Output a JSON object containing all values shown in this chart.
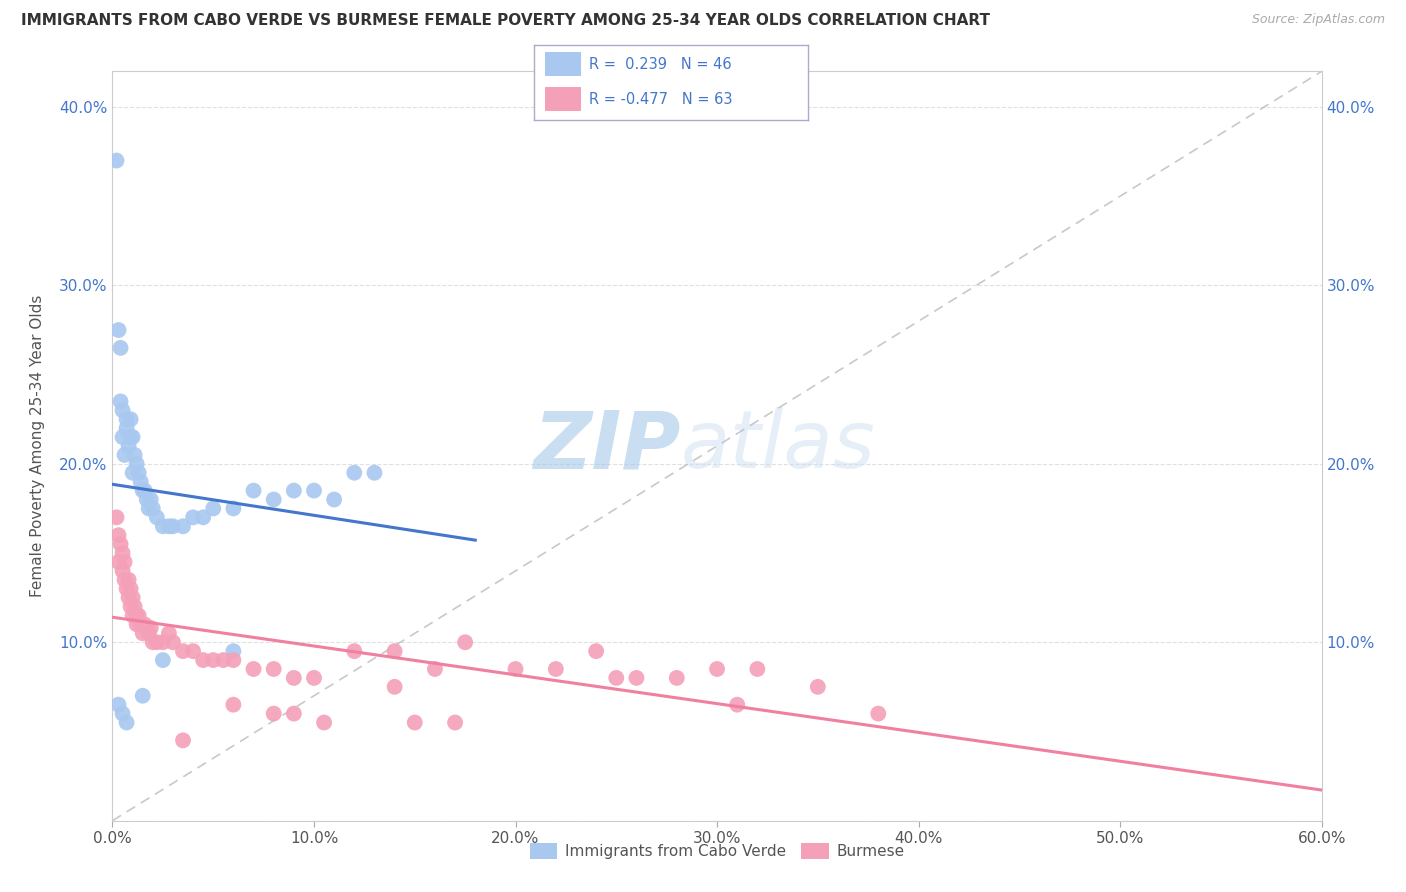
{
  "title": "IMMIGRANTS FROM CABO VERDE VS BURMESE FEMALE POVERTY AMONG 25-34 YEAR OLDS CORRELATION CHART",
  "source": "Source: ZipAtlas.com",
  "ylabel": "Female Poverty Among 25-34 Year Olds",
  "background_color": "#ffffff",
  "watermark_zip": "ZIP",
  "watermark_atlas": "atlas",
  "cabo_verde_color": "#a8c8f0",
  "burmese_color": "#f4a0b8",
  "cabo_verde_line_color": "#4477cc",
  "burmese_line_color": "#f080a0",
  "trendline_dashed_color": "#bbbbbb",
  "xlim": [
    0.0,
    0.6
  ],
  "ylim": [
    0.0,
    0.42
  ],
  "xtick_vals": [
    0.0,
    0.1,
    0.2,
    0.3,
    0.4,
    0.5,
    0.6
  ],
  "ytick_vals": [
    0.0,
    0.1,
    0.2,
    0.3,
    0.4
  ],
  "xtick_labels": [
    "0.0%",
    "10.0%",
    "20.0%",
    "30.0%",
    "40.0%",
    "50.0%",
    "60.0%"
  ],
  "ytick_left_labels": [
    "",
    "10.0%",
    "20.0%",
    "30.0%",
    "40.0%"
  ],
  "ytick_right_labels": [
    "10.0%",
    "20.0%",
    "30.0%",
    "40.0%"
  ],
  "cabo_verde_x": [
    0.002,
    0.003,
    0.004,
    0.004,
    0.005,
    0.005,
    0.006,
    0.007,
    0.007,
    0.008,
    0.009,
    0.009,
    0.01,
    0.01,
    0.011,
    0.012,
    0.013,
    0.014,
    0.015,
    0.016,
    0.017,
    0.018,
    0.019,
    0.02,
    0.022,
    0.025,
    0.028,
    0.03,
    0.035,
    0.04,
    0.045,
    0.05,
    0.06,
    0.07,
    0.08,
    0.09,
    0.1,
    0.11,
    0.12,
    0.13,
    0.003,
    0.005,
    0.007,
    0.015,
    0.025,
    0.06
  ],
  "cabo_verde_y": [
    0.37,
    0.275,
    0.265,
    0.235,
    0.215,
    0.23,
    0.205,
    0.225,
    0.22,
    0.21,
    0.215,
    0.225,
    0.195,
    0.215,
    0.205,
    0.2,
    0.195,
    0.19,
    0.185,
    0.185,
    0.18,
    0.175,
    0.18,
    0.175,
    0.17,
    0.165,
    0.165,
    0.165,
    0.165,
    0.17,
    0.17,
    0.175,
    0.175,
    0.185,
    0.18,
    0.185,
    0.185,
    0.18,
    0.195,
    0.195,
    0.065,
    0.06,
    0.055,
    0.07,
    0.09,
    0.095
  ],
  "burmese_x": [
    0.002,
    0.003,
    0.003,
    0.004,
    0.005,
    0.005,
    0.006,
    0.006,
    0.007,
    0.008,
    0.008,
    0.009,
    0.009,
    0.01,
    0.01,
    0.011,
    0.012,
    0.012,
    0.013,
    0.014,
    0.015,
    0.016,
    0.017,
    0.018,
    0.019,
    0.02,
    0.022,
    0.025,
    0.028,
    0.03,
    0.035,
    0.04,
    0.045,
    0.05,
    0.055,
    0.06,
    0.07,
    0.08,
    0.09,
    0.1,
    0.12,
    0.14,
    0.16,
    0.175,
    0.2,
    0.22,
    0.24,
    0.26,
    0.28,
    0.3,
    0.32,
    0.35,
    0.38,
    0.25,
    0.31,
    0.17,
    0.14,
    0.06,
    0.08,
    0.105,
    0.15,
    0.09,
    0.035
  ],
  "burmese_y": [
    0.17,
    0.16,
    0.145,
    0.155,
    0.14,
    0.15,
    0.145,
    0.135,
    0.13,
    0.135,
    0.125,
    0.13,
    0.12,
    0.125,
    0.115,
    0.12,
    0.115,
    0.11,
    0.115,
    0.11,
    0.105,
    0.11,
    0.108,
    0.105,
    0.108,
    0.1,
    0.1,
    0.1,
    0.105,
    0.1,
    0.095,
    0.095,
    0.09,
    0.09,
    0.09,
    0.09,
    0.085,
    0.085,
    0.08,
    0.08,
    0.095,
    0.095,
    0.085,
    0.1,
    0.085,
    0.085,
    0.095,
    0.08,
    0.08,
    0.085,
    0.085,
    0.075,
    0.06,
    0.08,
    0.065,
    0.055,
    0.075,
    0.065,
    0.06,
    0.055,
    0.055,
    0.06,
    0.045
  ]
}
